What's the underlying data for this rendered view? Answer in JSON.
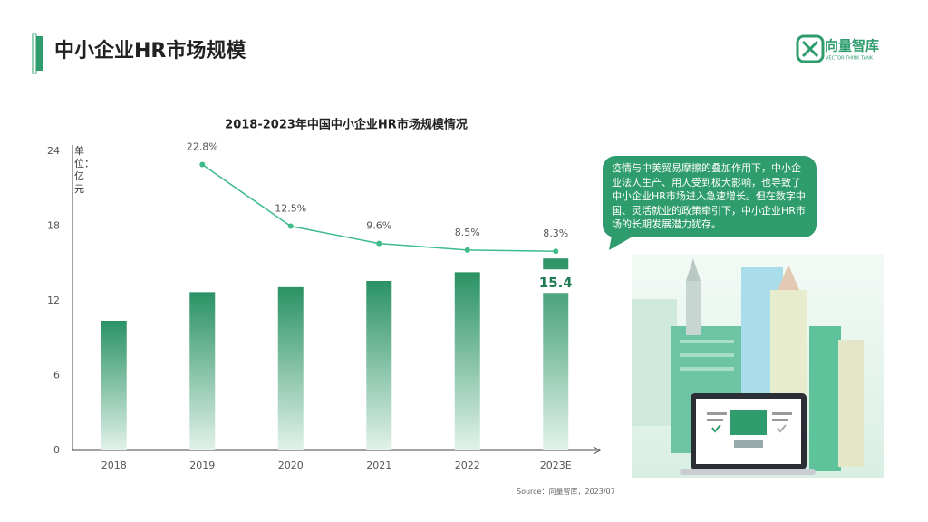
{
  "header": {
    "title": "中小企业HR市场规模",
    "logo": "向量智库",
    "logo_sub": "VECTOR THINK TANK"
  },
  "chart_data": {
    "type": "bar",
    "title": "2018-2023年中国中小企业HR市场规模情况",
    "unit_label": "单位：亿元",
    "categories": [
      "2018",
      "2019",
      "2020",
      "2021",
      "2022",
      "2023E"
    ],
    "series": [
      {
        "type": "bar",
        "color": "#2a9265",
        "values": [
          10.4,
          12.7,
          13.1,
          13.6,
          14.3,
          15.4
        ],
        "value_labels": [
          null,
          null,
          null,
          null,
          null,
          "15.4"
        ]
      },
      {
        "type": "line",
        "axis": "y2",
        "color": "#3dbb8a",
        "values": [
          null,
          22.8,
          12.5,
          9.6,
          8.5,
          8.3
        ],
        "value_labels": [
          null,
          "22.8%",
          "12.5%",
          "9.6%",
          "8.5%",
          "8.3%"
        ]
      }
    ],
    "ylim": [
      0,
      24
    ],
    "yticks": [
      0,
      6,
      12,
      18,
      24
    ],
    "y2lim": [
      -25,
      25
    ],
    "grid": false
  },
  "callout": "疫情与中美贸易摩擦的叠加作用下，中小企业法人生产、用人受到极大影响，也导致了中小企业HR市场进入急速增长。但在数字中国、灵活就业的政策牵引下，中小企业HR市场的长期发展潜力犹存。",
  "source": "Source：向量智库，2023/07"
}
